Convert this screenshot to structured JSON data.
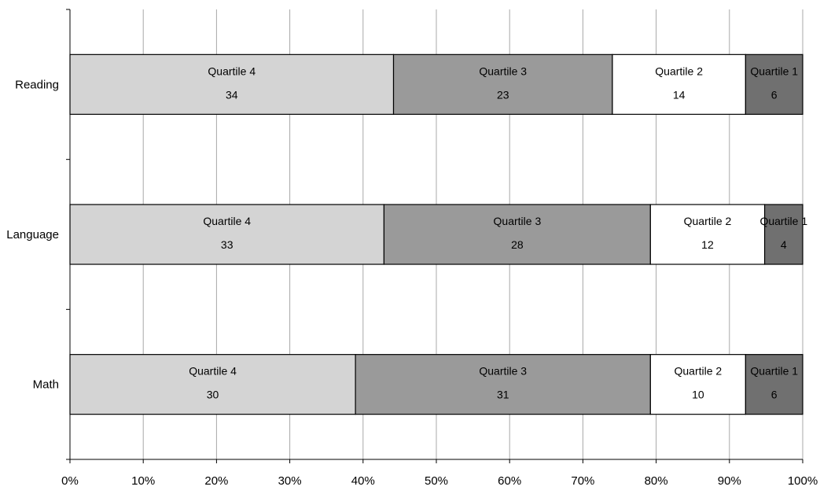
{
  "chart_data": {
    "type": "bar",
    "orientation": "horizontal",
    "stacking": "percent",
    "categories": [
      "Reading",
      "Language",
      "Math"
    ],
    "series": [
      {
        "name": "Quartile 4",
        "values": [
          34,
          33,
          30
        ],
        "color": "#d4d4d4"
      },
      {
        "name": "Quartile 3",
        "values": [
          23,
          28,
          31
        ],
        "color": "#9a9a9a"
      },
      {
        "name": "Quartile 2",
        "values": [
          14,
          12,
          10
        ],
        "color": "#ffffff"
      },
      {
        "name": "Quartile 1",
        "values": [
          6,
          4,
          6
        ],
        "color": "#707070"
      }
    ],
    "x_ticks": [
      "0%",
      "10%",
      "20%",
      "30%",
      "40%",
      "50%",
      "60%",
      "70%",
      "80%",
      "90%",
      "100%"
    ],
    "xlim": [
      0,
      100
    ],
    "grid": "vertical",
    "legend": "none"
  }
}
